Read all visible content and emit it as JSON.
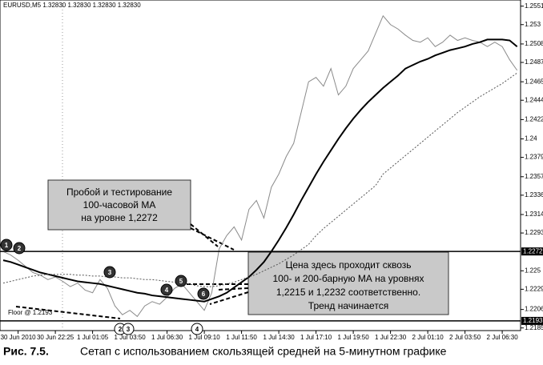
{
  "header": "EURUSD,M5  1.32830 1.32830 1.32830 1.32830",
  "chart_data": {
    "type": "line",
    "categories": [
      null,
      null,
      "30 Jun 2010",
      null,
      null,
      null,
      null,
      "30 Jun 22:25",
      null,
      null,
      null,
      null,
      "1 Jul 01:05",
      null,
      null,
      null,
      null,
      "1 Jul 03:50",
      null,
      null,
      null,
      null,
      "1 Jul 06:30",
      null,
      null,
      null,
      null,
      "1 Jul 09:10",
      null,
      null,
      null,
      null,
      "1 Jul 11:50",
      null,
      null,
      null,
      null,
      "1 Jul 14:30",
      null,
      null,
      null,
      null,
      "1 Jul 17:10",
      null,
      null,
      null,
      null,
      "1 Jul 19:50",
      null,
      null,
      null,
      null,
      "1 Jul 22:30",
      null,
      null,
      null,
      null,
      "2 Jul 01:10",
      null,
      null,
      null,
      null,
      "2 Jul 03:50",
      null,
      null,
      null,
      null,
      "2 Jul 06:30",
      null,
      null
    ],
    "series": [
      {
        "color": "#8a8a8a",
        "values": [
          1.2272,
          1.2268,
          1.2262,
          1.2255,
          1.2248,
          1.2245,
          1.224,
          1.2243,
          1.2238,
          1.2232,
          1.2236,
          1.2228,
          1.2225,
          1.224,
          1.223,
          1.221,
          1.22,
          1.2205,
          1.2198,
          1.221,
          1.2215,
          1.2212,
          1.222,
          1.223,
          1.2235,
          1.2225,
          1.2215,
          1.2205,
          1.2225,
          1.2275,
          1.229,
          1.23,
          1.2285,
          1.232,
          1.233,
          1.231,
          1.2345,
          1.236,
          1.238,
          1.2395,
          1.243,
          1.2465,
          1.247,
          1.246,
          1.248,
          1.245,
          1.246,
          1.248,
          1.249,
          1.25,
          1.252,
          1.254,
          1.253,
          1.2525,
          1.2518,
          1.2512,
          1.251,
          1.2515,
          1.2505,
          1.251,
          1.2518,
          1.2512,
          1.2515,
          1.2512,
          1.251,
          1.2505,
          1.251,
          1.2505,
          1.249,
          1.2478
        ]
      },
      {
        "color": "#000000",
        "width": 2,
        "values": [
          1.2262,
          1.226,
          1.2257,
          1.2254,
          1.2251,
          1.2248,
          1.2246,
          1.2244,
          1.2242,
          1.224,
          1.2238,
          1.2237,
          1.2236,
          1.2235,
          1.2233,
          1.2231,
          1.2229,
          1.2227,
          1.2225,
          1.2224,
          1.2222,
          1.2221,
          1.222,
          1.2219,
          1.2218,
          1.2217,
          1.2216,
          1.2215,
          1.2218,
          1.2221,
          1.2225,
          1.2231,
          1.2237,
          1.2243,
          1.2251,
          1.226,
          1.2272,
          1.2285,
          1.2299,
          1.2314,
          1.233,
          1.2345,
          1.236,
          1.2374,
          1.2387,
          1.24,
          1.2412,
          1.2423,
          1.2433,
          1.2442,
          1.245,
          1.2458,
          1.2465,
          1.2472,
          1.248,
          1.2484,
          1.2488,
          1.2491,
          1.2495,
          1.2498,
          1.2501,
          1.2503,
          1.2505,
          1.2508,
          1.251,
          1.2513,
          1.2513,
          1.2513,
          1.2512,
          1.2505
        ]
      },
      {
        "color": "#555555",
        "dash": "2,2",
        "width": 1,
        "values": [
          1.2236,
          1.2238,
          1.224,
          1.2242,
          1.2244,
          1.2245,
          1.2246,
          1.2246,
          1.2246,
          1.2246,
          1.2245,
          1.2245,
          1.2244,
          1.2244,
          1.2243,
          1.2243,
          1.2242,
          1.2242,
          1.2241,
          1.224,
          1.224,
          1.2239,
          1.2238,
          1.2237,
          1.2236,
          1.2235,
          1.2233,
          1.2232,
          1.2232,
          1.2233,
          1.2235,
          1.2237,
          1.224,
          1.2243,
          1.2246,
          1.225,
          1.2254,
          1.2258,
          1.2263,
          1.2268,
          1.2274,
          1.228,
          1.229,
          1.2298,
          1.2305,
          1.2312,
          1.2319,
          1.2326,
          1.2333,
          1.234,
          1.2347,
          1.236,
          1.2367,
          1.2374,
          1.2381,
          1.2388,
          1.2395,
          1.2402,
          1.2409,
          1.2416,
          1.2423,
          1.243,
          1.2436,
          1.2442,
          1.2448,
          1.2453,
          1.2458,
          1.2463,
          1.2469,
          1.2475
        ]
      }
    ],
    "ylim": [
      1.2182,
      1.2558
    ],
    "yticks": [
      1.2551,
      1.253,
      1.2508,
      1.2487,
      1.2465,
      1.2444,
      1.2422,
      1.24,
      1.2379,
      1.2357,
      1.2336,
      1.2314,
      1.2293,
      1.225,
      1.2229,
      1.2206,
      1.2185
    ],
    "levels": [
      1.2272,
      1.2193
    ],
    "floor_label": "Floor @ 1.2193",
    "markers": [
      "1",
      "2",
      "3",
      "4",
      "5",
      "6",
      "2",
      "3",
      "4"
    ],
    "callouts": [
      [
        "Пробой и тестирование",
        "100-часовой МА",
        "на уровне 1,2272"
      ],
      [
        "Цена здесь проходит сквозь",
        "100- и 200-барную МА на уровнях",
        "1,2215 и 1,2232 соответственно.",
        "Тренд начинается"
      ]
    ]
  },
  "caption": {
    "number": "Рис. 7.5.",
    "text": "Сетап с использованием скользящей средней на 5-минутном графике"
  }
}
